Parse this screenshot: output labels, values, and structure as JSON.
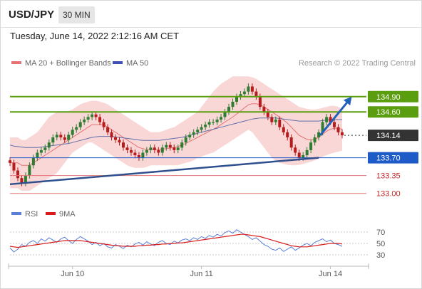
{
  "header": {
    "symbol": "USD/JPY",
    "timeframe": "30 MIN",
    "datetime": "Tuesday, June 14, 2022 2:12:16 AM CET"
  },
  "legend": {
    "ma20": "MA 20 + Bollinger Bands",
    "ma50": "MA 50",
    "credit": "Research © 2022 Trading Central"
  },
  "rsi_legend": {
    "rsi": "RSI",
    "ma9": "9MA"
  },
  "colors": {
    "candle_up": "#2e7d32",
    "candle_down": "#b71c1c",
    "bollinger": "#f8c9c9",
    "ma20": "#e57373",
    "ma50": "#5f6fa8",
    "resistance": "#5a9e0f",
    "pivot": "#1e5bc6",
    "support": "#e57373",
    "last": "#333333",
    "rsi": "#5b7fd6",
    "rsi_ma": "#d81b1b"
  },
  "chart_data": {
    "type": "line",
    "title": "USD/JPY 30 MIN",
    "price_axis": {
      "ylim": [
        132.8,
        135.4
      ]
    },
    "x_ticks": [
      "Jun 10",
      "Jun 11",
      "Jun 14"
    ],
    "levels": [
      {
        "value": 134.9,
        "label": "134.90",
        "kind": "resistance"
      },
      {
        "value": 134.6,
        "label": "134.60",
        "kind": "resistance"
      },
      {
        "value": 134.14,
        "label": "134.14",
        "kind": "last"
      },
      {
        "value": 133.7,
        "label": "133.70",
        "kind": "pivot"
      },
      {
        "value": 133.35,
        "label": "133.35",
        "kind": "support"
      },
      {
        "value": 133.0,
        "label": "133.00",
        "kind": "support"
      }
    ],
    "close": [
      133.6,
      133.45,
      133.3,
      133.2,
      133.35,
      133.55,
      133.7,
      133.8,
      133.85,
      133.9,
      134.0,
      134.1,
      134.15,
      134.1,
      134.05,
      134.15,
      134.25,
      134.3,
      134.4,
      134.45,
      134.5,
      134.55,
      134.5,
      134.4,
      134.3,
      134.2,
      134.1,
      134.05,
      134.0,
      133.9,
      133.85,
      133.8,
      133.75,
      133.7,
      133.8,
      133.85,
      133.9,
      133.85,
      133.8,
      133.9,
      133.95,
      133.9,
      133.85,
      133.9,
      134.0,
      134.1,
      134.15,
      134.2,
      134.25,
      134.3,
      134.35,
      134.4,
      134.4,
      134.45,
      134.5,
      134.6,
      134.7,
      134.8,
      134.9,
      134.95,
      135.0,
      135.1,
      135.0,
      134.9,
      134.7,
      134.6,
      134.5,
      134.4,
      134.45,
      134.3,
      134.2,
      134.1,
      133.9,
      133.8,
      133.7,
      133.75,
      133.85,
      134.0,
      134.1,
      134.2,
      134.4,
      134.5,
      134.4,
      134.3,
      134.2,
      134.14
    ],
    "ma20": [
      133.6,
      133.6,
      133.6,
      133.55,
      133.55,
      133.55,
      133.6,
      133.65,
      133.7,
      133.75,
      133.8,
      133.85,
      133.9,
      133.95,
      134.0,
      134.05,
      134.1,
      134.15,
      134.2,
      134.25,
      134.3,
      134.35,
      134.35,
      134.35,
      134.35,
      134.3,
      134.25,
      134.2,
      134.15,
      134.1,
      134.05,
      134.0,
      133.95,
      133.9,
      133.88,
      133.86,
      133.86,
      133.86,
      133.86,
      133.87,
      133.88,
      133.89,
      133.9,
      133.92,
      133.95,
      133.98,
      134.02,
      134.06,
      134.1,
      134.14,
      134.18,
      134.22,
      134.26,
      134.3,
      134.35,
      134.4,
      134.45,
      134.5,
      134.56,
      134.62,
      134.68,
      134.74,
      134.76,
      134.76,
      134.74,
      134.7,
      134.65,
      134.6,
      134.55,
      134.5,
      134.44,
      134.38,
      134.3,
      134.22,
      134.14,
      134.1,
      134.06,
      134.05,
      134.06,
      134.1,
      134.16,
      134.22,
      134.26,
      134.28,
      134.28,
      134.26
    ],
    "ma50": [
      133.95,
      133.93,
      133.92,
      133.91,
      133.9,
      133.9,
      133.9,
      133.9,
      133.91,
      133.92,
      133.93,
      133.94,
      133.95,
      133.96,
      133.97,
      133.98,
      134.0,
      134.02,
      134.04,
      134.06,
      134.08,
      134.1,
      134.11,
      134.12,
      134.12,
      134.12,
      134.12,
      134.11,
      134.1,
      134.09,
      134.08,
      134.07,
      134.06,
      134.05,
      134.04,
      134.04,
      134.04,
      134.04,
      134.04,
      134.05,
      134.06,
      134.07,
      134.08,
      134.09,
      134.1,
      134.12,
      134.14,
      134.16,
      134.18,
      134.2,
      134.22,
      134.24,
      134.26,
      134.28,
      134.3,
      134.32,
      134.34,
      134.36,
      134.38,
      134.4,
      134.42,
      134.44,
      134.46,
      134.47,
      134.48,
      134.48,
      134.48,
      134.48,
      134.48,
      134.47,
      134.46,
      134.45,
      134.44,
      134.43,
      134.42,
      134.42,
      134.42,
      134.42,
      134.42,
      134.42,
      134.43,
      134.44,
      134.45,
      134.45,
      134.45,
      134.45
    ],
    "band_upper": [
      134.1,
      134.1,
      134.1,
      134.05,
      134.05,
      134.1,
      134.15,
      134.2,
      134.3,
      134.4,
      134.5,
      134.55,
      134.6,
      134.6,
      134.6,
      134.62,
      134.65,
      134.7,
      134.75,
      134.78,
      134.8,
      134.82,
      134.82,
      134.8,
      134.78,
      134.75,
      134.7,
      134.65,
      134.6,
      134.55,
      134.5,
      134.45,
      134.4,
      134.35,
      134.3,
      134.25,
      134.2,
      134.2,
      134.2,
      134.22,
      134.25,
      134.28,
      134.3,
      134.35,
      134.4,
      134.45,
      134.5,
      134.55,
      134.6,
      134.7,
      134.8,
      134.9,
      135.0,
      135.08,
      135.15,
      135.2,
      135.25,
      135.3,
      135.3,
      135.3,
      135.3,
      135.3,
      135.28,
      135.25,
      135.2,
      135.15,
      135.1,
      135.05,
      135.0,
      134.95,
      134.9,
      134.85,
      134.8,
      134.75,
      134.7,
      134.68,
      134.66,
      134.65,
      134.65,
      134.66,
      134.68,
      134.7,
      134.72,
      134.72,
      134.7,
      134.66
    ],
    "band_lower": [
      133.1,
      133.1,
      133.1,
      133.05,
      133.05,
      133.05,
      133.1,
      133.15,
      133.2,
      133.25,
      133.3,
      133.35,
      133.4,
      133.5,
      133.6,
      133.7,
      133.8,
      133.85,
      133.9,
      133.95,
      134.0,
      134.0,
      133.95,
      133.9,
      133.85,
      133.8,
      133.75,
      133.7,
      133.65,
      133.6,
      133.55,
      133.52,
      133.5,
      133.5,
      133.5,
      133.52,
      133.55,
      133.55,
      133.55,
      133.55,
      133.55,
      133.55,
      133.55,
      133.55,
      133.58,
      133.6,
      133.62,
      133.65,
      133.7,
      133.72,
      133.75,
      133.78,
      133.8,
      133.85,
      133.9,
      133.95,
      134.0,
      134.05,
      134.1,
      134.15,
      134.2,
      134.25,
      134.2,
      134.1,
      134.0,
      133.9,
      133.8,
      133.7,
      133.65,
      133.6,
      133.58,
      133.56,
      133.55,
      133.55,
      133.56,
      133.58,
      133.6,
      133.62,
      133.65,
      133.68,
      133.72,
      133.75,
      133.78,
      133.8,
      133.82,
      133.84
    ],
    "trend_line": [
      [
        0,
        133.18
      ],
      [
        79,
        133.7
      ]
    ],
    "projection": [
      [
        79,
        134.14
      ],
      [
        86,
        134.9
      ]
    ],
    "rsi": {
      "ylim": [
        20,
        80
      ],
      "ticks": [
        70,
        50,
        30
      ],
      "rsi": [
        42,
        35,
        40,
        48,
        45,
        52,
        55,
        50,
        58,
        54,
        60,
        56,
        52,
        58,
        61,
        55,
        50,
        57,
        62,
        58,
        54,
        48,
        52,
        46,
        50,
        44,
        42,
        48,
        45,
        41,
        47,
        44,
        49,
        52,
        47,
        53,
        49,
        46,
        52,
        55,
        50,
        48,
        54,
        51,
        56,
        58,
        55,
        60,
        57,
        62,
        59,
        64,
        61,
        66,
        63,
        69,
        72,
        68,
        74,
        70,
        66,
        62,
        57,
        60,
        54,
        48,
        45,
        40,
        38,
        42,
        36,
        40,
        44,
        38,
        42,
        47,
        50,
        46,
        52,
        55,
        58,
        53,
        56,
        50,
        48,
        45
      ],
      "ma9": [
        45,
        44,
        43,
        44,
        45,
        46,
        47,
        48,
        49,
        50,
        51,
        52,
        53,
        54,
        55,
        55,
        55,
        55,
        55,
        54,
        53,
        52,
        51,
        50,
        49,
        48,
        47,
        46,
        46,
        45,
        45,
        45,
        45,
        46,
        46,
        47,
        47,
        48,
        48,
        49,
        49,
        50,
        50,
        51,
        51,
        52,
        53,
        54,
        55,
        56,
        57,
        58,
        59,
        60,
        61,
        62,
        63,
        64,
        65,
        66,
        66,
        65,
        64,
        63,
        62,
        60,
        58,
        56,
        54,
        52,
        50,
        48,
        46,
        45,
        44,
        44,
        44,
        45,
        46,
        47,
        48,
        49,
        50,
        50,
        50,
        49
      ]
    }
  }
}
